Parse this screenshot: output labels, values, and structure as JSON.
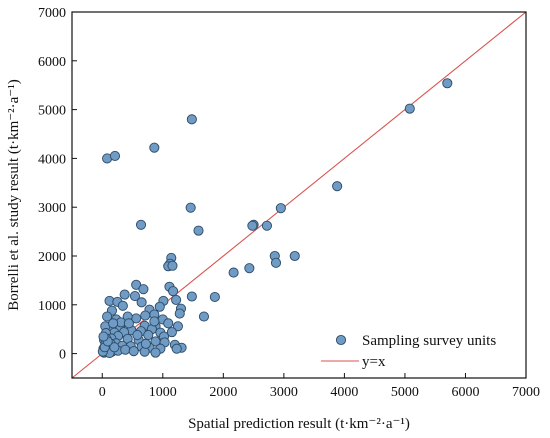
{
  "chart_data": {
    "type": "scatter",
    "title": "",
    "xlabel": "Spatial prediction result (t·km⁻²·a⁻¹)",
    "ylabel": "Borrelli et al. study result (t·km⁻²·a⁻¹)",
    "xlim": [
      -500,
      7000
    ],
    "ylim": [
      -500,
      7000
    ],
    "xticks": [
      "0",
      "1000",
      "2000",
      "3000",
      "4000",
      "5000",
      "6000",
      "7000"
    ],
    "yticks": [
      "0",
      "1000",
      "2000",
      "3000",
      "4000",
      "5000",
      "6000",
      "7000"
    ],
    "legend_position": "bottom-right",
    "series": [
      {
        "name": "Sampling survey units",
        "kind": "scatter",
        "color": "#6f9bc4",
        "edge_color": "#2c4a66",
        "points": [
          [
            80,
            4000
          ],
          [
            210,
            4050
          ],
          [
            860,
            4220
          ],
          [
            1480,
            4800
          ],
          [
            1460,
            2990
          ],
          [
            640,
            2640
          ],
          [
            1590,
            2520
          ],
          [
            5700,
            5540
          ],
          [
            5080,
            5020
          ],
          [
            3880,
            3430
          ],
          [
            2950,
            2980
          ],
          [
            2500,
            2640
          ],
          [
            2480,
            2620
          ],
          [
            2720,
            2620
          ],
          [
            2850,
            2000
          ],
          [
            2870,
            1860
          ],
          [
            3180,
            2000
          ],
          [
            2430,
            1750
          ],
          [
            2170,
            1660
          ],
          [
            1140,
            1960
          ],
          [
            1120,
            1840
          ],
          [
            1090,
            1790
          ],
          [
            1160,
            1800
          ],
          [
            1860,
            1160
          ],
          [
            1480,
            1170
          ],
          [
            1680,
            760
          ],
          [
            560,
            1410
          ],
          [
            680,
            1320
          ],
          [
            540,
            1180
          ],
          [
            1110,
            1370
          ],
          [
            1170,
            1280
          ],
          [
            1010,
            1080
          ],
          [
            1220,
            1100
          ],
          [
            370,
            1210
          ],
          [
            120,
            1080
          ],
          [
            650,
            1050
          ],
          [
            250,
            1060
          ],
          [
            950,
            960
          ],
          [
            780,
            900
          ],
          [
            160,
            880
          ],
          [
            1300,
            920
          ],
          [
            1280,
            820
          ],
          [
            860,
            800
          ],
          [
            710,
            780
          ],
          [
            560,
            720
          ],
          [
            1000,
            700
          ],
          [
            420,
            760
          ],
          [
            230,
            700
          ],
          [
            80,
            760
          ],
          [
            1090,
            620
          ],
          [
            880,
            560
          ],
          [
            700,
            570
          ],
          [
            820,
            500
          ],
          [
            1250,
            560
          ],
          [
            140,
            560
          ],
          [
            300,
            520
          ],
          [
            50,
            560
          ],
          [
            480,
            480
          ],
          [
            640,
            460
          ],
          [
            960,
            430
          ],
          [
            1020,
            350
          ],
          [
            360,
            440
          ],
          [
            200,
            430
          ],
          [
            60,
            420
          ],
          [
            1150,
            440
          ],
          [
            760,
            380
          ],
          [
            260,
            360
          ],
          [
            150,
            310
          ],
          [
            70,
            300
          ],
          [
            30,
            280
          ],
          [
            420,
            300
          ],
          [
            600,
            280
          ],
          [
            880,
            250
          ],
          [
            1030,
            230
          ],
          [
            1200,
            180
          ],
          [
            1310,
            120
          ],
          [
            1230,
            100
          ],
          [
            230,
            210
          ],
          [
            140,
            200
          ],
          [
            50,
            190
          ],
          [
            110,
            150
          ],
          [
            330,
            160
          ],
          [
            470,
            150
          ],
          [
            650,
            140
          ],
          [
            780,
            120
          ],
          [
            960,
            100
          ],
          [
            20,
            100
          ],
          [
            80,
            60
          ],
          [
            160,
            40
          ],
          [
            260,
            60
          ],
          [
            380,
            80
          ],
          [
            520,
            50
          ],
          [
            700,
            40
          ],
          [
            880,
            20
          ],
          [
            30,
            20
          ],
          [
            120,
            10
          ],
          [
            200,
            130
          ],
          [
            10,
            40
          ],
          [
            40,
            130
          ],
          [
            90,
            250
          ],
          [
            310,
            640
          ],
          [
            180,
            620
          ],
          [
            580,
            380
          ],
          [
            720,
            200
          ],
          [
            440,
            620
          ],
          [
            20,
            350
          ],
          [
            340,
            980
          ],
          [
            860,
            660
          ]
        ]
      },
      {
        "name": "y=x",
        "kind": "line",
        "color": "#d9534f",
        "x": [
          -500,
          7000
        ],
        "y": [
          -500,
          7000
        ]
      }
    ]
  }
}
